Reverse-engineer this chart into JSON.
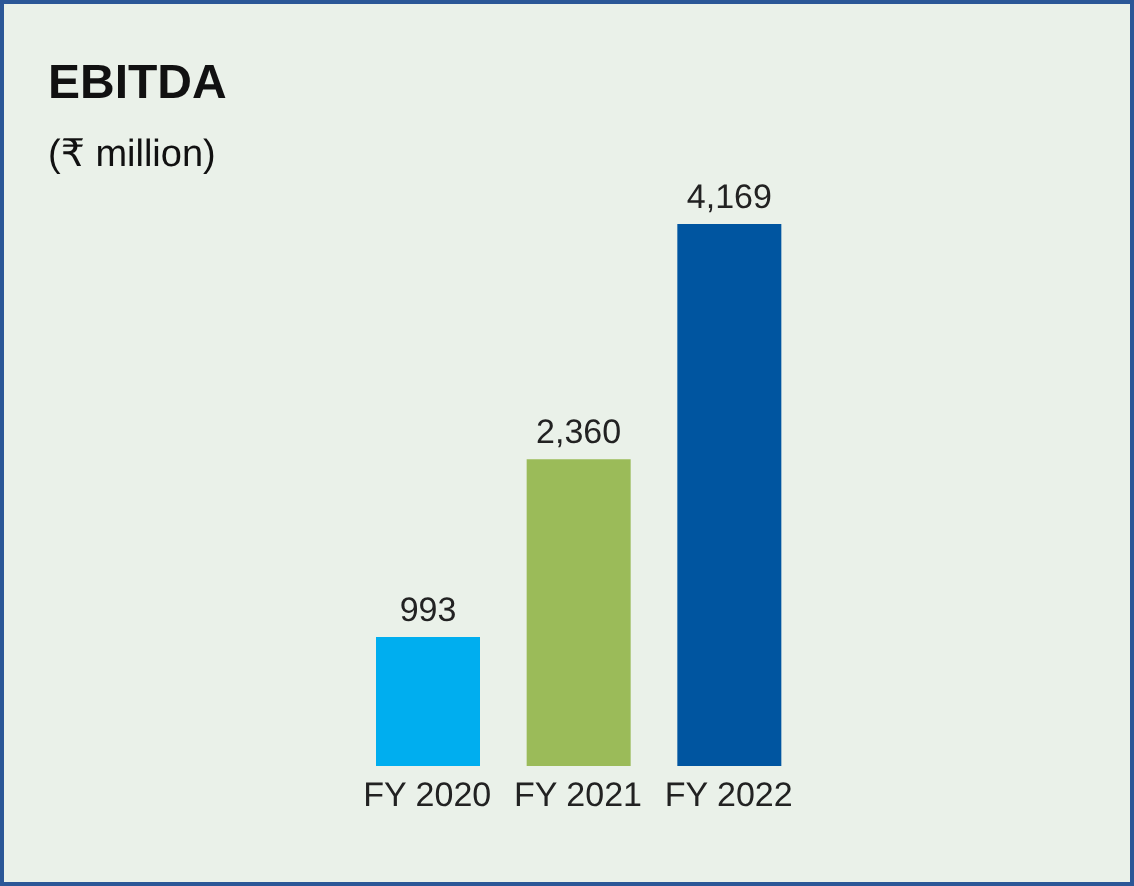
{
  "chart_data": {
    "type": "bar",
    "title": "EBITDA",
    "subtitle": "(₹ million)",
    "categories": [
      "FY 2020",
      "FY 2021",
      "FY 2022"
    ],
    "values": [
      993,
      2360,
      4169
    ],
    "value_labels": [
      "993",
      "2,360",
      "4,169"
    ],
    "colors": [
      "#00aeef",
      "#9bbb59",
      "#0055a0"
    ]
  }
}
